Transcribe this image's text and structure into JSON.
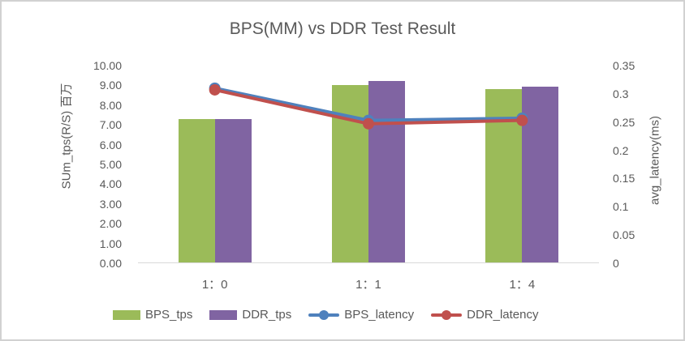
{
  "frame": {
    "background": "#FFFFFF",
    "border_color": "#D1D1D1"
  },
  "chart_data": {
    "type": "combo-bar-line",
    "title": "BPS(MM) vs DDR Test Result",
    "categories": [
      "1：0",
      "1：1",
      "1：4"
    ],
    "left_axis": {
      "label": "SUm_tps(R/S) 百万",
      "min": 0,
      "max": 10,
      "ticks": [
        "10.00",
        "9.00",
        "8.00",
        "7.00",
        "6.00",
        "5.00",
        "4.00",
        "3.00",
        "2.00",
        "1.00",
        "0.00"
      ]
    },
    "right_axis": {
      "label": "avg_latency(ms)",
      "min": 0,
      "max": 0.35,
      "ticks": [
        "0.35",
        "0.3",
        "0.25",
        "0.2",
        "0.15",
        "0.1",
        "0.05",
        "0"
      ]
    },
    "bar_series": [
      {
        "name": "BPS_tps",
        "color": "#9BBB59",
        "axis": "left",
        "values": [
          7.24,
          8.97,
          8.77
        ]
      },
      {
        "name": "DDR_tps",
        "color": "#8064A2",
        "axis": "left",
        "values": [
          7.24,
          9.18,
          8.89
        ]
      }
    ],
    "line_series": [
      {
        "name": "BPS_latency",
        "color": "#4F81BD",
        "axis": "right",
        "values": [
          0.31,
          0.253,
          0.257
        ]
      },
      {
        "name": "DDR_latency",
        "color": "#C0504D",
        "axis": "right",
        "values": [
          0.307,
          0.247,
          0.253
        ]
      }
    ],
    "legend": [
      {
        "label": "BPS_tps",
        "type": "bar",
        "color": "#9BBB59"
      },
      {
        "label": "DDR_tps",
        "type": "bar",
        "color": "#8064A2"
      },
      {
        "label": "BPS_latency",
        "type": "line",
        "color": "#4F81BD"
      },
      {
        "label": "DDR_latency",
        "type": "line",
        "color": "#C0504D"
      }
    ],
    "legend_position": "bottom",
    "gridlines": false,
    "text_color": "#595959",
    "axis_line_color": "#D9D9D9"
  }
}
